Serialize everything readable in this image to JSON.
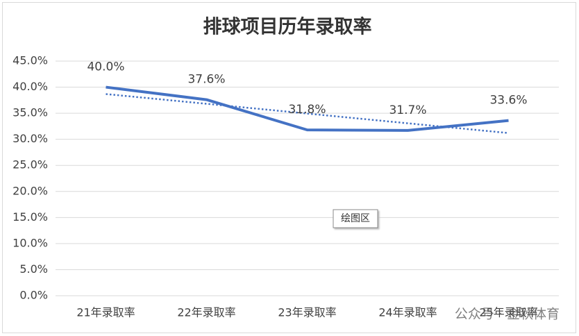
{
  "chart_data": {
    "type": "line",
    "title": "排球项目历年录取率",
    "categories": [
      "21年录取率",
      "22年录取率",
      "23年录取率",
      "24年录取率",
      "25年录取率"
    ],
    "series": [
      {
        "name": "录取率",
        "color": "#4472c4",
        "values": [
          40.0,
          37.6,
          31.8,
          31.7,
          33.6
        ],
        "value_labels": [
          "40.0%",
          "37.6%",
          "31.8%",
          "31.7%",
          "33.6%"
        ]
      }
    ],
    "trendline": {
      "kind": "linear",
      "color": "#4472c4",
      "style": "dotted"
    },
    "ylim": [
      0,
      45
    ],
    "yticks": [
      {
        "value": 0,
        "label": "0.0%"
      },
      {
        "value": 5,
        "label": "5.0%"
      },
      {
        "value": 10,
        "label": "10.0%"
      },
      {
        "value": 15,
        "label": "15.0%"
      },
      {
        "value": 20,
        "label": "20.0%"
      },
      {
        "value": 25,
        "label": "25.0%"
      },
      {
        "value": 30,
        "label": "30.0%"
      },
      {
        "value": 35,
        "label": "35.0%"
      },
      {
        "value": 40,
        "label": "40.0%"
      },
      {
        "value": 45,
        "label": "45.0%"
      }
    ],
    "grid": true,
    "tooltip": "绘图区",
    "watermark": "公众号 · 金秋体育"
  }
}
